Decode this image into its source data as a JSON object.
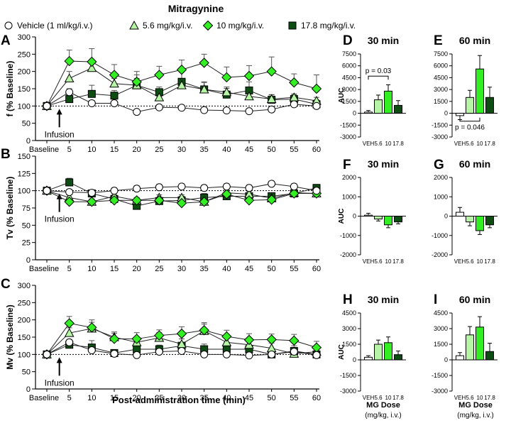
{
  "figure": {
    "title": "Mitragynine",
    "x_axis_title": "Post-administration time (min)",
    "infusion_label": "Infusion",
    "mg_dose_label": "MG Dose",
    "mg_dose_unit": "(mg/kg, i.v.)"
  },
  "legend": [
    {
      "name": "Vehicle (1 ml/kg/i.v.)",
      "marker": "circle",
      "color": "#ffffff"
    },
    {
      "name": "5.6 mg/kg/i.v.",
      "marker": "triangle",
      "color": "#b6f5a5"
    },
    {
      "name": "10 mg/kg/i.v.",
      "marker": "diamond",
      "color": "#33ee22"
    },
    {
      "name": "17.8 mg/kg/i.v.",
      "marker": "square",
      "color": "#0d4d12"
    }
  ],
  "chart_data": [
    {
      "panel": "A",
      "type": "line",
      "ylabel": "f (% Baseline)",
      "categories": [
        "Baseline",
        "5",
        "10",
        "15",
        "20",
        "25",
        "30",
        "35",
        "40",
        "45",
        "50",
        "55",
        "60"
      ],
      "ylim": [
        0,
        300
      ],
      "yticks": [
        0,
        50,
        100,
        150,
        200,
        250,
        300
      ],
      "reference_line": 100,
      "series": [
        {
          "name": "Vehicle",
          "values": [
            100,
            140,
            108,
            108,
            83,
            96,
            95,
            88,
            87,
            85,
            90,
            105,
            100
          ],
          "error": [
            0,
            10,
            8,
            6,
            6,
            6,
            6,
            6,
            5,
            5,
            5,
            6,
            6
          ]
        },
        {
          "name": "5.6 mg/kg",
          "values": [
            100,
            180,
            210,
            165,
            160,
            125,
            160,
            148,
            140,
            128,
            120,
            125,
            115
          ],
          "error": [
            0,
            20,
            18,
            15,
            20,
            12,
            18,
            20,
            15,
            10,
            12,
            10,
            10
          ]
        },
        {
          "name": "10 mg/kg",
          "values": [
            100,
            230,
            228,
            190,
            170,
            190,
            205,
            225,
            183,
            187,
            200,
            168,
            150
          ],
          "error": [
            0,
            32,
            38,
            30,
            30,
            25,
            28,
            25,
            30,
            30,
            42,
            25,
            40
          ]
        },
        {
          "name": "17.8 mg/kg",
          "values": [
            100,
            120,
            135,
            130,
            160,
            140,
            170,
            148,
            133,
            145,
            118,
            120,
            105
          ],
          "error": [
            0,
            12,
            25,
            15,
            30,
            15,
            28,
            22,
            18,
            25,
            15,
            12,
            12
          ]
        }
      ]
    },
    {
      "panel": "B",
      "type": "line",
      "ylabel": "Tv (% Baseline)",
      "categories": [
        "Baseline",
        "5",
        "10",
        "15",
        "20",
        "25",
        "30",
        "35",
        "40",
        "45",
        "50",
        "55",
        "60"
      ],
      "ylim": [
        0,
        150
      ],
      "yticks": [
        0,
        25,
        50,
        75,
        100,
        125,
        150
      ],
      "reference_line": 100,
      "series": [
        {
          "name": "Vehicle",
          "values": [
            100,
            98,
            97,
            100,
            103,
            105,
            106,
            104,
            106,
            104,
            110,
            106,
            100
          ],
          "error": [
            0,
            4,
            4,
            4,
            4,
            4,
            4,
            4,
            4,
            4,
            4,
            4,
            4
          ]
        },
        {
          "name": "5.6 mg/kg",
          "values": [
            100,
            90,
            84,
            92,
            86,
            90,
            90,
            84,
            97,
            95,
            89,
            97,
            96
          ],
          "error": [
            0,
            4,
            4,
            4,
            4,
            4,
            4,
            4,
            4,
            4,
            4,
            4,
            4
          ]
        },
        {
          "name": "10 mg/kg",
          "values": [
            100,
            84,
            84,
            86,
            86,
            86,
            82,
            84,
            95,
            86,
            87,
            96,
            96
          ],
          "error": [
            0,
            4,
            4,
            4,
            4,
            4,
            4,
            4,
            4,
            4,
            4,
            4,
            4
          ]
        },
        {
          "name": "17.8 mg/kg",
          "values": [
            100,
            112,
            96,
            88,
            78,
            85,
            86,
            90,
            92,
            92,
            92,
            96,
            104
          ],
          "error": [
            0,
            6,
            5,
            6,
            5,
            5,
            6,
            6,
            5,
            5,
            5,
            6,
            5
          ]
        }
      ]
    },
    {
      "panel": "C",
      "type": "line",
      "ylabel": "Mv (% Baseline)",
      "categories": [
        "Baseline",
        "5",
        "10",
        "15",
        "20",
        "25",
        "30",
        "35",
        "40",
        "45",
        "50",
        "55",
        "60"
      ],
      "ylim": [
        0,
        300
      ],
      "yticks": [
        0,
        50,
        100,
        150,
        200,
        250,
        300
      ],
      "reference_line": 100,
      "series": [
        {
          "name": "Vehicle",
          "values": [
            100,
            135,
            112,
            102,
            98,
            108,
            110,
            100,
            100,
            97,
            100,
            108,
            98
          ],
          "error": [
            0,
            8,
            8,
            5,
            5,
            5,
            5,
            5,
            5,
            5,
            5,
            5,
            5
          ]
        },
        {
          "name": "5.6 mg/kg",
          "values": [
            100,
            162,
            175,
            150,
            135,
            148,
            130,
            168,
            135,
            128,
            118,
            102,
            108
          ],
          "error": [
            0,
            15,
            18,
            15,
            15,
            15,
            15,
            20,
            15,
            12,
            15,
            10,
            10
          ]
        },
        {
          "name": "10 mg/kg",
          "values": [
            100,
            190,
            178,
            145,
            145,
            155,
            160,
            170,
            152,
            142,
            143,
            140,
            120
          ],
          "error": [
            0,
            20,
            22,
            16,
            18,
            16,
            20,
            22,
            18,
            18,
            16,
            18,
            18
          ]
        },
        {
          "name": "17.8 mg/kg",
          "values": [
            100,
            128,
            120,
            104,
            115,
            115,
            125,
            115,
            115,
            115,
            100,
            110,
            100
          ],
          "error": [
            0,
            12,
            20,
            10,
            20,
            12,
            20,
            15,
            20,
            12,
            15,
            15,
            15
          ]
        }
      ]
    },
    {
      "panel": "D",
      "type": "bar",
      "title": "30 min",
      "ylabel": "AUC",
      "categories": [
        "VEH",
        "5.6",
        "10",
        "17.8"
      ],
      "values": [
        150,
        1700,
        2800,
        1000
      ],
      "error": [
        200,
        600,
        800,
        600
      ],
      "ylim": [
        -3000,
        7500
      ],
      "yticks": [
        -3000,
        -1500,
        0,
        1500,
        3000,
        4500,
        6000,
        7500
      ],
      "annotation": "p = 0.03"
    },
    {
      "panel": "E",
      "type": "bar",
      "title": "60 min",
      "ylabel": "",
      "categories": [
        "VEH",
        "5.6",
        "10",
        "17.8"
      ],
      "values": [
        -300,
        2000,
        5600,
        2000
      ],
      "error": [
        500,
        900,
        1700,
        1300
      ],
      "ylim": [
        -3000,
        7500
      ],
      "yticks": [
        -3000,
        -1500,
        0,
        1500,
        3000,
        4500,
        6000,
        7500
      ],
      "annotation": "p = 0.046"
    },
    {
      "panel": "F",
      "type": "bar",
      "title": "30 min",
      "ylabel": "AUC",
      "categories": [
        "VEH",
        "5.6",
        "10",
        "17.8"
      ],
      "values": [
        50,
        -150,
        -450,
        -300
      ],
      "error": [
        100,
        100,
        150,
        100
      ],
      "ylim": [
        -2000,
        2000
      ],
      "yticks": [
        -2000,
        -1000,
        0,
        1000,
        2000
      ]
    },
    {
      "panel": "G",
      "type": "bar",
      "title": "60 min",
      "ylabel": "",
      "categories": [
        "VEH",
        "5.6",
        "10",
        "17.8"
      ],
      "values": [
        200,
        -300,
        -750,
        -450
      ],
      "error": [
        250,
        200,
        200,
        150
      ],
      "ylim": [
        -2000,
        2000
      ],
      "yticks": [
        -2000,
        -1000,
        0,
        1000,
        2000
      ]
    },
    {
      "panel": "H",
      "type": "bar",
      "title": "30 min",
      "ylabel": "AUC",
      "categories": [
        "VEH",
        "5.6",
        "10",
        "17.8"
      ],
      "values": [
        250,
        1500,
        1650,
        500
      ],
      "error": [
        150,
        400,
        550,
        350
      ],
      "ylim": [
        -3000,
        4500
      ],
      "yticks": [
        -3000,
        -1500,
        0,
        1500,
        3000,
        4500
      ]
    },
    {
      "panel": "I",
      "type": "bar",
      "title": "60 min",
      "ylabel": "",
      "categories": [
        "VEH",
        "5.6",
        "10",
        "17.8"
      ],
      "values": [
        400,
        2400,
        3150,
        800
      ],
      "error": [
        300,
        800,
        1000,
        800
      ],
      "ylim": [
        -3000,
        4500
      ],
      "yticks": [
        -3000,
        -1500,
        0,
        1500,
        3000,
        4500
      ]
    }
  ]
}
